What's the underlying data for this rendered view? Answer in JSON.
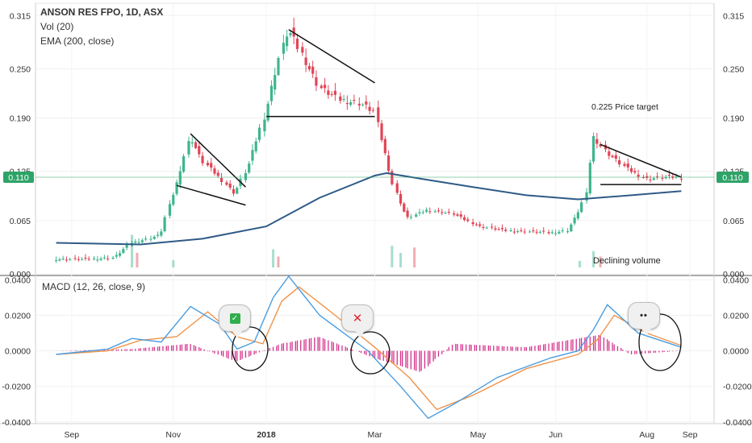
{
  "legend": {
    "title": "ANSON RES FPO, 1D, ASX",
    "vol": "Vol (20)",
    "ema": "EMA (200, close)",
    "macd": "MACD (12, 26, close, 9)"
  },
  "annotations": {
    "price_target": "0.225 Price target",
    "declining_volume": "Declining volume"
  },
  "bubbles": {
    "check": "✓",
    "cross": "✕",
    "dots": "••"
  },
  "colors": {
    "up": "#3fb58f",
    "down": "#e04657",
    "ema": "#2f5a86",
    "macd": "#4a9de0",
    "signal": "#f0934a",
    "histogram": "#d4318c",
    "current_price_tag": "#2ea368"
  },
  "chart_data": [
    {
      "type": "candlestick",
      "title": "ANSON RES FPO, 1D, ASX",
      "current_price": 0.11,
      "current_price_label": "0.110",
      "y_ticks": [
        0.0,
        0.065,
        0.125,
        0.19,
        0.25,
        0.315
      ],
      "y_tick_labels": [
        "0.000",
        "0.065",
        "0.125",
        "0.190",
        "0.250",
        "0.315"
      ],
      "ylim": [
        0.0,
        0.315
      ],
      "x_ticks": [
        "Sep",
        "Nov",
        "2018",
        "Mar",
        "May",
        "Jun",
        "Aug",
        "Sep"
      ],
      "price_path": [
        [
          "2017-09-01",
          0.01
        ],
        [
          "2017-09-20",
          0.01
        ],
        [
          "2017-10-05",
          0.012
        ],
        [
          "2017-10-15",
          0.03
        ],
        [
          "2017-10-25",
          0.035
        ],
        [
          "2017-11-01",
          0.04
        ],
        [
          "2017-11-05",
          0.07
        ],
        [
          "2017-11-10",
          0.1
        ],
        [
          "2017-11-18",
          0.16
        ],
        [
          "2017-11-25",
          0.13
        ],
        [
          "2017-12-05",
          0.11
        ],
        [
          "2017-12-14",
          0.09
        ],
        [
          "2017-12-22",
          0.125
        ],
        [
          "2018-01-01",
          0.19
        ],
        [
          "2018-01-08",
          0.25
        ],
        [
          "2018-01-14",
          0.29
        ],
        [
          "2018-01-22",
          0.26
        ],
        [
          "2018-02-01",
          0.22
        ],
        [
          "2018-02-12",
          0.205
        ],
        [
          "2018-02-25",
          0.2
        ],
        [
          "2018-03-05",
          0.19
        ],
        [
          "2018-03-10",
          0.15
        ],
        [
          "2018-03-16",
          0.1
        ],
        [
          "2018-03-24",
          0.06
        ],
        [
          "2018-04-05",
          0.07
        ],
        [
          "2018-04-20",
          0.065
        ],
        [
          "2018-05-05",
          0.05
        ],
        [
          "2018-05-20",
          0.045
        ],
        [
          "2018-06-01",
          0.044
        ],
        [
          "2018-06-15",
          0.042
        ],
        [
          "2018-06-25",
          0.045
        ],
        [
          "2018-07-01",
          0.065
        ],
        [
          "2018-07-06",
          0.09
        ],
        [
          "2018-07-10",
          0.16
        ],
        [
          "2018-07-18",
          0.14
        ],
        [
          "2018-07-30",
          0.12
        ],
        [
          "2018-08-10",
          0.108
        ],
        [
          "2018-08-22",
          0.11
        ],
        [
          "2018-08-30",
          0.11
        ]
      ],
      "ema200_path": [
        [
          "2017-09-01",
          0.03
        ],
        [
          "2017-10-20",
          0.028
        ],
        [
          "2017-11-25",
          0.035
        ],
        [
          "2018-01-01",
          0.05
        ],
        [
          "2018-02-01",
          0.085
        ],
        [
          "2018-03-05",
          0.112
        ],
        [
          "2018-03-12",
          0.115
        ],
        [
          "2018-04-01",
          0.108
        ],
        [
          "2018-05-01",
          0.098
        ],
        [
          "2018-06-01",
          0.088
        ],
        [
          "2018-07-01",
          0.083
        ],
        [
          "2018-08-01",
          0.088
        ],
        [
          "2018-08-30",
          0.093
        ]
      ],
      "volume_spikes": [
        [
          "2017-10-15",
          0.09
        ],
        [
          "2017-10-18",
          0.04
        ],
        [
          "2017-11-08",
          0.02
        ],
        [
          "2018-01-05",
          0.05
        ],
        [
          "2018-01-08",
          0.03
        ],
        [
          "2018-03-15",
          0.06
        ],
        [
          "2018-03-20",
          0.04
        ],
        [
          "2018-03-28",
          0.055
        ],
        [
          "2018-07-02",
          0.018
        ],
        [
          "2018-07-10",
          0.045
        ],
        [
          "2018-07-14",
          0.03
        ]
      ],
      "trendlines": [
        {
          "from": [
            "2017-11-10",
            0.1
          ],
          "to": [
            "2017-12-20",
            0.076
          ]
        },
        {
          "from": [
            "2017-11-18",
            0.163
          ],
          "to": [
            "2017-12-20",
            0.098
          ]
        },
        {
          "from": [
            "2018-01-14",
            0.29
          ],
          "to": [
            "2018-03-05",
            0.225
          ]
        },
        {
          "from": [
            "2018-01-01",
            0.184
          ],
          "to": [
            "2018-03-05",
            0.184
          ]
        },
        {
          "from": [
            "2018-07-14",
            0.15
          ],
          "to": [
            "2018-08-30",
            0.11
          ]
        },
        {
          "from": [
            "2018-07-14",
            0.101
          ],
          "to": [
            "2018-08-30",
            0.101
          ]
        }
      ]
    },
    {
      "type": "macd",
      "title": "MACD (12, 26, close, 9)",
      "y_ticks": [
        -0.04,
        -0.02,
        0.0,
        0.02,
        0.04
      ],
      "y_tick_labels": [
        "-0.0400",
        "-0.0200",
        "0.0000",
        "0.0200",
        "0.0400"
      ],
      "ylim": [
        -0.041,
        0.042
      ],
      "macd_path": [
        [
          "2017-09-01",
          -0.002
        ],
        [
          "2017-10-01",
          0.001
        ],
        [
          "2017-10-15",
          0.007
        ],
        [
          "2017-11-01",
          0.005
        ],
        [
          "2017-11-18",
          0.025
        ],
        [
          "2017-12-05",
          0.015
        ],
        [
          "2017-12-15",
          0.001
        ],
        [
          "2017-12-25",
          0.005
        ],
        [
          "2018-01-05",
          0.03
        ],
        [
          "2018-01-14",
          0.042
        ],
        [
          "2018-02-01",
          0.02
        ],
        [
          "2018-03-01",
          0.0
        ],
        [
          "2018-03-20",
          -0.02
        ],
        [
          "2018-04-05",
          -0.038
        ],
        [
          "2018-04-20",
          -0.03
        ],
        [
          "2018-05-15",
          -0.015
        ],
        [
          "2018-06-15",
          -0.004
        ],
        [
          "2018-07-01",
          0.0
        ],
        [
          "2018-07-10",
          0.012
        ],
        [
          "2018-07-18",
          0.026
        ],
        [
          "2018-08-05",
          0.01
        ],
        [
          "2018-08-30",
          0.002
        ]
      ],
      "signal_path": [
        [
          "2017-09-01",
          -0.002
        ],
        [
          "2017-10-01",
          0.0
        ],
        [
          "2017-10-20",
          0.006
        ],
        [
          "2017-11-10",
          0.008
        ],
        [
          "2017-11-28",
          0.022
        ],
        [
          "2017-12-15",
          0.008
        ],
        [
          "2017-12-30",
          0.004
        ],
        [
          "2018-01-10",
          0.028
        ],
        [
          "2018-01-20",
          0.036
        ],
        [
          "2018-02-10",
          0.02
        ],
        [
          "2018-03-05",
          0.002
        ],
        [
          "2018-03-25",
          -0.015
        ],
        [
          "2018-04-10",
          -0.033
        ],
        [
          "2018-05-01",
          -0.025
        ],
        [
          "2018-06-01",
          -0.01
        ],
        [
          "2018-07-01",
          -0.002
        ],
        [
          "2018-07-12",
          0.006
        ],
        [
          "2018-07-22",
          0.02
        ],
        [
          "2018-08-10",
          0.01
        ],
        [
          "2018-08-30",
          0.003
        ]
      ],
      "histogram_path": [
        [
          "2017-09-01",
          0.0
        ],
        [
          "2017-10-15",
          0.001
        ],
        [
          "2017-11-18",
          0.004
        ],
        [
          "2017-12-15",
          -0.006
        ],
        [
          "2018-01-10",
          0.004
        ],
        [
          "2018-02-01",
          0.008
        ],
        [
          "2018-03-05",
          -0.004
        ],
        [
          "2018-04-01",
          -0.012
        ],
        [
          "2018-04-20",
          0.004
        ],
        [
          "2018-06-01",
          0.002
        ],
        [
          "2018-07-14",
          0.009
        ],
        [
          "2018-08-01",
          -0.002
        ],
        [
          "2018-08-30",
          0.0
        ]
      ]
    }
  ]
}
